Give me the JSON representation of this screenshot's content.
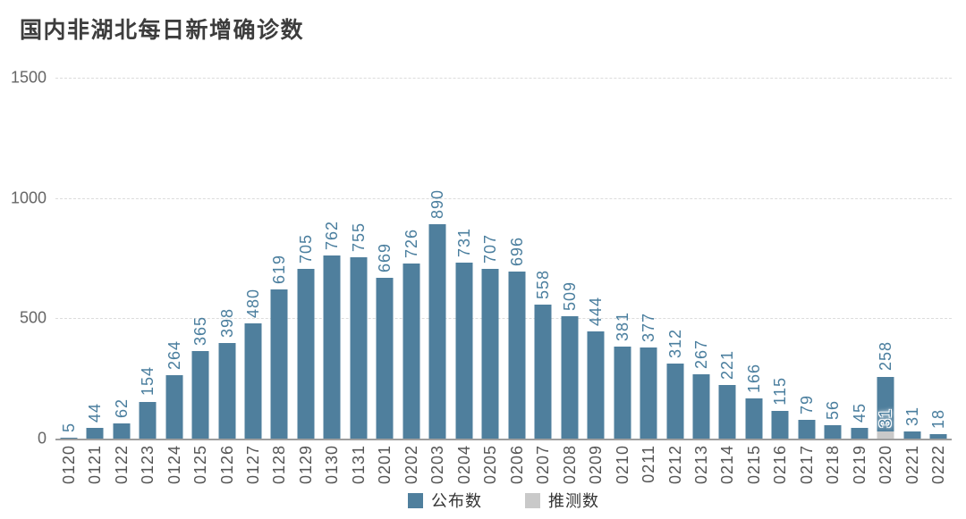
{
  "title": "国内非湖北每日新增确诊数",
  "colors": {
    "announced": "#4f7f9d",
    "estimated": "#c9c9c9",
    "value_label": "#4a7e9e",
    "axis_label": "#666666",
    "x_label": "#555555"
  },
  "chart_data": {
    "type": "bar",
    "title": "国内非湖北每日新增确诊数",
    "xlabel": "",
    "ylabel": "",
    "ylim": [
      0,
      1500
    ],
    "yticks": [
      0,
      500,
      1000,
      1500
    ],
    "grid": true,
    "legend_position": "bottom",
    "categories": [
      "0120",
      "0121",
      "0122",
      "0123",
      "0124",
      "0125",
      "0126",
      "0127",
      "0128",
      "0129",
      "0130",
      "0131",
      "0201",
      "0202",
      "0203",
      "0204",
      "0205",
      "0206",
      "0207",
      "0208",
      "0209",
      "0210",
      "0211",
      "0212",
      "0213",
      "0214",
      "0215",
      "0216",
      "0217",
      "0218",
      "0219",
      "0220",
      "0221",
      "0222"
    ],
    "series": [
      {
        "name": "公布数",
        "color": "#4f7f9d",
        "values": [
          5,
          44,
          62,
          154,
          264,
          365,
          398,
          480,
          619,
          705,
          762,
          755,
          669,
          726,
          890,
          731,
          707,
          696,
          558,
          509,
          444,
          381,
          377,
          312,
          267,
          221,
          166,
          115,
          79,
          56,
          45,
          258,
          31,
          18
        ]
      },
      {
        "name": "推测数",
        "color": "#c9c9c9",
        "values": [
          null,
          null,
          null,
          null,
          null,
          null,
          null,
          null,
          null,
          null,
          null,
          null,
          null,
          null,
          null,
          null,
          null,
          null,
          null,
          null,
          null,
          null,
          null,
          null,
          null,
          null,
          null,
          null,
          null,
          null,
          null,
          31,
          null,
          null
        ]
      }
    ]
  }
}
